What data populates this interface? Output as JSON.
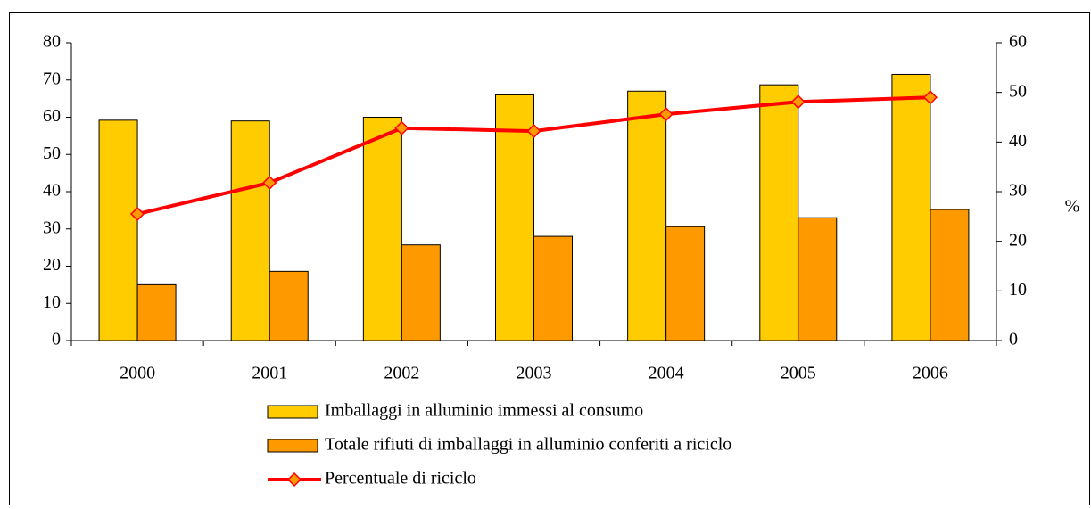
{
  "chart_data": {
    "type": "bar",
    "categories": [
      "2000",
      "2001",
      "2002",
      "2003",
      "2004",
      "2005",
      "2006"
    ],
    "series": [
      {
        "name": "Imballaggi in alluminio immessi al consumo",
        "type": "bar",
        "color": "#ffcc00",
        "values": [
          59.2,
          59,
          60,
          66,
          67,
          68.7,
          71.5
        ]
      },
      {
        "name": "Totale rifiuti di imballaggi in alluminio conferiti a riciclo",
        "type": "bar",
        "color": "#ff9900",
        "values": [
          15,
          18.6,
          25.7,
          28,
          30.6,
          33,
          35.2
        ]
      },
      {
        "name": "Percentuale di riciclo",
        "type": "line",
        "axis": "y2",
        "color": "#ff0000",
        "marker_color": "#ff9900",
        "values": [
          25.5,
          31.8,
          42.8,
          42.2,
          45.6,
          48.1,
          49.0
        ]
      }
    ],
    "ylim": [
      0,
      80
    ],
    "yticks": [
      0,
      10,
      20,
      30,
      40,
      50,
      60,
      70,
      80
    ],
    "y2lim": [
      0,
      60
    ],
    "y2ticks": [
      0,
      10,
      20,
      30,
      40,
      50,
      60
    ],
    "y2label": "%",
    "legend": "bottom",
    "grid": false
  }
}
